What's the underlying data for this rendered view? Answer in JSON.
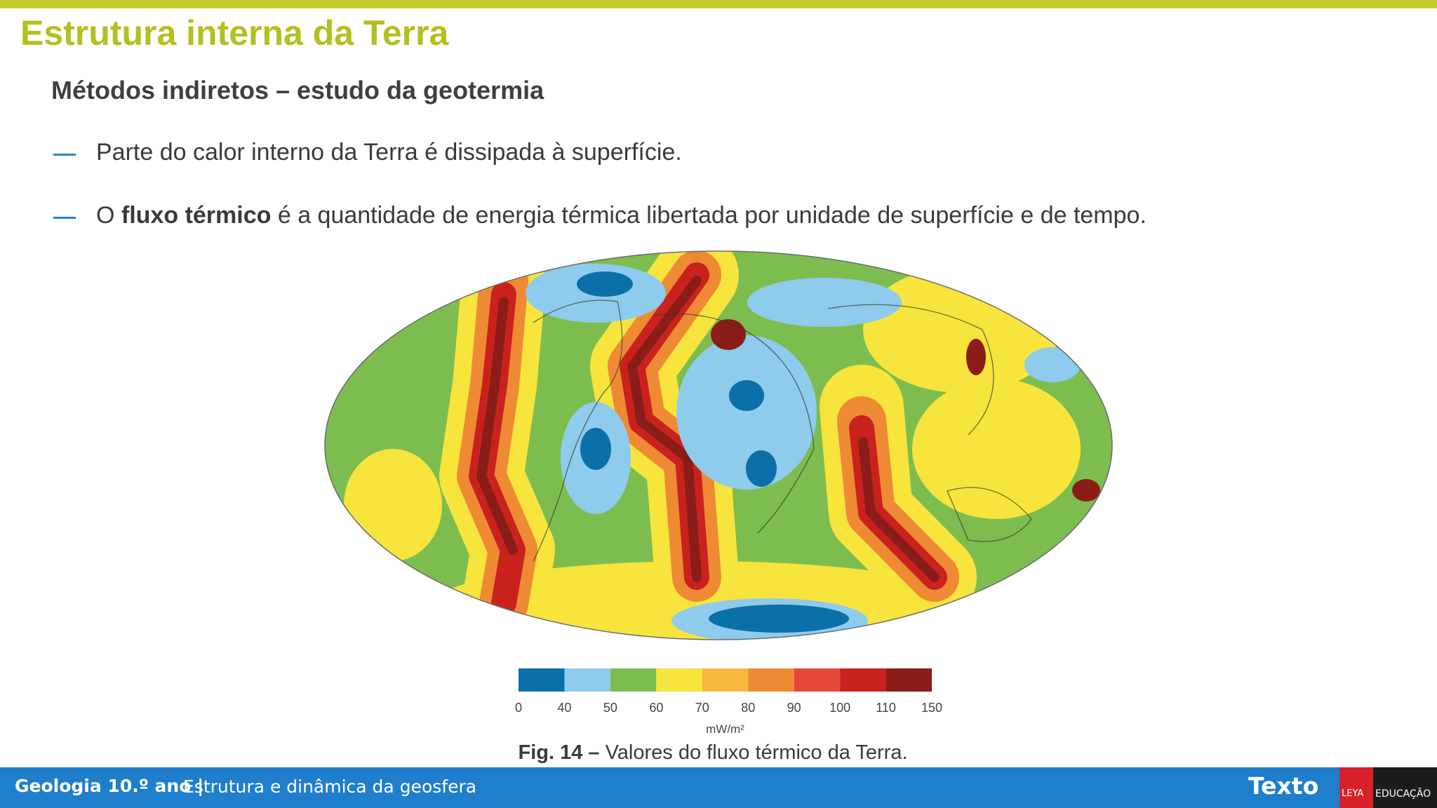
{
  "header": {
    "title": "Estrutura interna da Terra",
    "subtitle": "Métodos indiretos – estudo da geotermia"
  },
  "bullets": [
    {
      "text": "Parte do calor interno da Terra é dissipada à superfície."
    },
    {
      "parts": [
        "O ",
        "fluxo térmico",
        " é a quantidade de energia térmica libertada por unidade de superfície e de tempo."
      ]
    }
  ],
  "figure": {
    "legend": {
      "ticks": [
        "0",
        "40",
        "50",
        "60",
        "70",
        "80",
        "90",
        "100",
        "110",
        "150"
      ],
      "colors": [
        "#0b6fa8",
        "#8fcbec",
        "#7dbd4f",
        "#f7e43c",
        "#f6b83f",
        "#ef8a34",
        "#e4473a",
        "#c9221e",
        "#8b1d18"
      ],
      "unit": "mW/m²"
    },
    "caption": {
      "label": "Fig. 14 –",
      "text": "Valores do fluxo térmico da Terra."
    }
  },
  "footer": {
    "course": "Geologia 10.º ano |",
    "topic": "Estrutura e dinâmica da geosfera",
    "brand": "Texto",
    "publisher": "LEYA",
    "division": "EDUCAÇÃO"
  }
}
